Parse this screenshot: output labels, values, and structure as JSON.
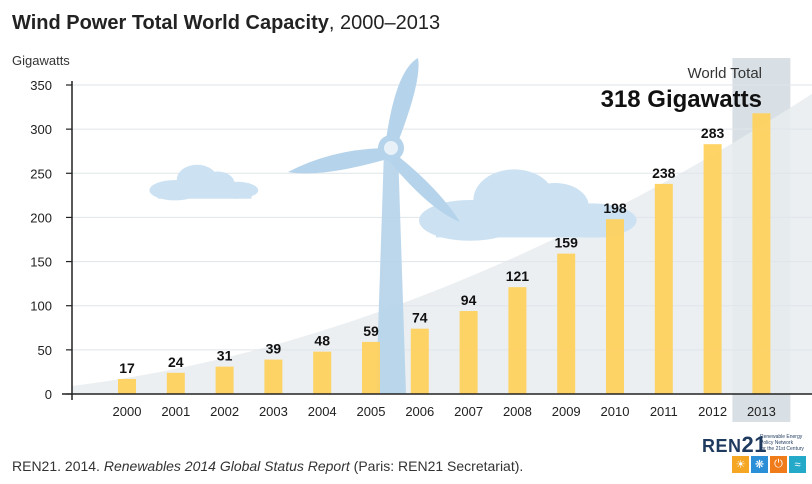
{
  "title": {
    "bold": "Wind Power Total World Capacity",
    "rest": ", 2000–2013"
  },
  "source": {
    "prefix": "REN21. 2014. ",
    "italic": "Renewables 2014 Global Status Report",
    "suffix": " (Paris: REN21 Secretariat)."
  },
  "logo": {
    "word": "REN",
    "number": "21",
    "tagline": [
      "Renewable Energy",
      "Policy Network",
      "for the 21st Century"
    ],
    "tiles": [
      {
        "icon": "sun-icon",
        "color": "#f5a623"
      },
      {
        "icon": "wind-turbine-icon",
        "color": "#2a8fd6"
      },
      {
        "icon": "power-icon",
        "color": "#f07b1a"
      },
      {
        "icon": "water-wave-icon",
        "color": "#25a9c9"
      }
    ]
  },
  "colors": {
    "bar": "#FFD05A",
    "highlight_column": "#D9E0E5",
    "trend_area": "#E7ECF0",
    "turbine": "#B5D3EA",
    "clouds": "#CCE2F3",
    "axis": "#222222"
  },
  "chart_data": {
    "type": "bar",
    "title": "Wind Power Total World Capacity, 2000–2013",
    "ylabel": "Gigawatts",
    "xlabel": "",
    "ylim": [
      0,
      350
    ],
    "yticks": [
      0,
      50,
      100,
      150,
      200,
      250,
      300,
      350
    ],
    "categories": [
      "2000",
      "2001",
      "2002",
      "2003",
      "2004",
      "2005",
      "2006",
      "2007",
      "2008",
      "2009",
      "2010",
      "2011",
      "2012",
      "2013"
    ],
    "values": [
      17,
      24,
      31,
      39,
      48,
      59,
      74,
      94,
      121,
      159,
      198,
      238,
      283,
      318
    ],
    "data_labels": [
      "17",
      "24",
      "31",
      "39",
      "48",
      "59",
      "74",
      "94",
      "121",
      "159",
      "198",
      "238",
      "283",
      ""
    ],
    "grid": true,
    "annotation": {
      "label": "World Total",
      "value": "318 Gigawatts",
      "category": "2013"
    }
  }
}
